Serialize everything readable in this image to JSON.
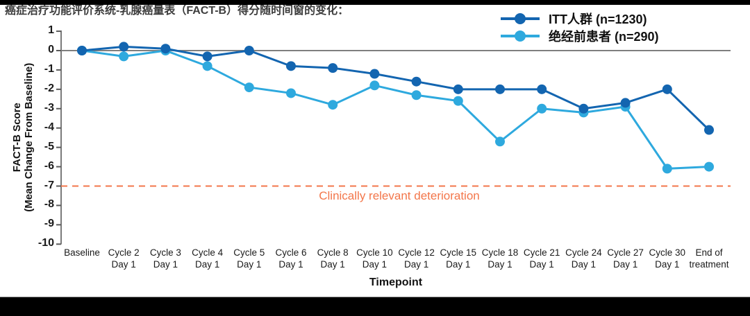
{
  "page": {
    "title": "癌症治疗功能评价系统-乳腺癌量表（FACT-B）得分随时间窗的变化："
  },
  "chart_data": {
    "type": "line",
    "xlabel": "Timepoint",
    "ylabel": [
      "FACT-B Score",
      "(Mean Change From Baseline)"
    ],
    "ylim": [
      -10,
      1
    ],
    "yticks": [
      1,
      0,
      -1,
      -2,
      -3,
      -4,
      -5,
      -6,
      -7,
      -8,
      -9,
      -10
    ],
    "grid": false,
    "legend_position": "top-right",
    "categories": [
      "Baseline",
      "Cycle 2\nDay 1",
      "Cycle 3\nDay 1",
      "Cycle 4\nDay 1",
      "Cycle 5\nDay 1",
      "Cycle 6\nDay 1",
      "Cycle 8\nDay 1",
      "Cycle 10\nDay 1",
      "Cycle 12\nDay 1",
      "Cycle 15\nDay 1",
      "Cycle 18\nDay 1",
      "Cycle 21\nDay 1",
      "Cycle 24\nDay 1",
      "Cycle 27\nDay 1",
      "Cycle 30\nDay 1",
      "End of\ntreatment"
    ],
    "series": [
      {
        "name": "ITT人群 (n=1230)",
        "color": "#1365b0",
        "values": [
          0,
          0.2,
          0.1,
          -0.3,
          0,
          -0.8,
          -0.9,
          -1.2,
          -1.6,
          -2,
          -2,
          -2,
          -3,
          -2.7,
          -2,
          -4.1
        ]
      },
      {
        "name": "绝经前患者 (n=290)",
        "color": "#2ea9de",
        "values": [
          0,
          -0.3,
          0,
          -0.8,
          -1.9,
          -2.2,
          -2.8,
          -1.8,
          -2.3,
          -2.6,
          -4.7,
          -3,
          -3.2,
          -2.9,
          -6.1,
          -6
        ]
      }
    ],
    "zero_line_color": "#7f7f7f",
    "axis_color": "#7a7a7a",
    "tick_color": "#5a5a5a",
    "reference_line": {
      "value": -7,
      "label": "Clinically relevant deterioration",
      "color": "#f3764a",
      "style": "dashed"
    }
  }
}
